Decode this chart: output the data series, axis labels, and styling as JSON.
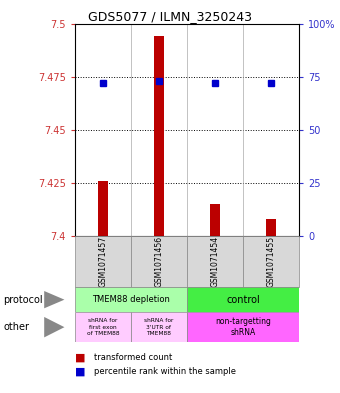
{
  "title": "GDS5077 / ILMN_3250243",
  "samples": [
    "GSM1071457",
    "GSM1071456",
    "GSM1071454",
    "GSM1071455"
  ],
  "bar_values": [
    7.426,
    7.494,
    7.415,
    7.408
  ],
  "bar_bottom": 7.4,
  "blue_values_pct": [
    72,
    73,
    72,
    72
  ],
  "ylim_left": [
    7.4,
    7.5
  ],
  "ylim_right": [
    0,
    100
  ],
  "yticks_left": [
    7.4,
    7.425,
    7.45,
    7.475,
    7.5
  ],
  "yticks_right": [
    0,
    25,
    50,
    75,
    100
  ],
  "ytick_labels_left": [
    "7.4",
    "7.425",
    "7.45",
    "7.475",
    "7.5"
  ],
  "ytick_labels_right": [
    "0",
    "25",
    "50",
    "75",
    "100%"
  ],
  "bar_color": "#bb0000",
  "blue_color": "#0000cc",
  "protocol_labels": [
    "TMEM88 depletion",
    "control"
  ],
  "protocol_colors": [
    "#aaffaa",
    "#44ee44"
  ],
  "other_labels_col0": "shRNA for\nfirst exon\nof TMEM88",
  "other_labels_col1": "shRNA for\n3'UTR of\nTMEM88",
  "other_labels_col23": "non-targetting\nshRNA",
  "other_color_01": "#ffccff",
  "other_color_23": "#ff66ff",
  "legend_red": "transformed count",
  "legend_blue": "percentile rank within the sample",
  "label_protocol": "protocol",
  "label_other": "other",
  "tick_color_left": "#cc3333",
  "tick_color_right": "#3333cc"
}
